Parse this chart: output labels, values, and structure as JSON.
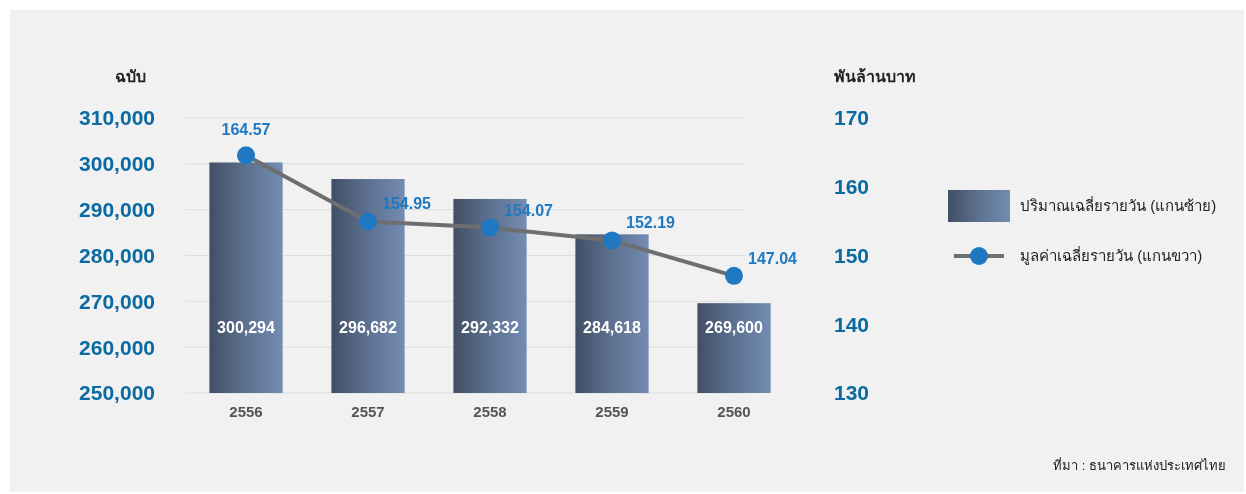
{
  "chart_data": {
    "type": "bar",
    "ylabel": "ฉบับ",
    "y2label": "พันล้านบาท",
    "categories": [
      "2556",
      "2557",
      "2558",
      "2559",
      "2560"
    ],
    "series": [
      {
        "name": "ปริมาณเฉลี่ยรายวัน (แกนซ้าย)",
        "color": "#5d7190",
        "values": [
          300294,
          296682,
          292332,
          284618,
          269600
        ],
        "value_labels": [
          "300,294",
          "296,682",
          "292,332",
          "284,618",
          "269,600"
        ]
      },
      {
        "name": "มูลค่าเฉลี่ยรายวัน (แกนขวา)",
        "type": "line",
        "axis": "y2",
        "color": "#1f78c1",
        "marker": "circle",
        "values": [
          164.57,
          154.95,
          154.07,
          152.19,
          147.04
        ],
        "value_labels": [
          "164.57",
          "154.95",
          "154.07",
          "152.19",
          "147.04"
        ]
      }
    ],
    "ylim": [
      250000,
      310000
    ],
    "yticks": [
      {
        "value": 250000,
        "label": "250,000"
      },
      {
        "value": 260000,
        "label": "260,000"
      },
      {
        "value": 270000,
        "label": "270,000"
      },
      {
        "value": 280000,
        "label": "280,000"
      },
      {
        "value": 290000,
        "label": "290,000"
      },
      {
        "value": 300000,
        "label": "300,000"
      },
      {
        "value": 310000,
        "label": "310,000"
      }
    ],
    "y2lim": [
      130,
      170
    ],
    "y2ticks": [
      130,
      140,
      150,
      160,
      170
    ],
    "grid": "y",
    "legend": "right",
    "annotations": [
      "ที่มา : ธนาคารแห่งประเทศไทย"
    ]
  }
}
